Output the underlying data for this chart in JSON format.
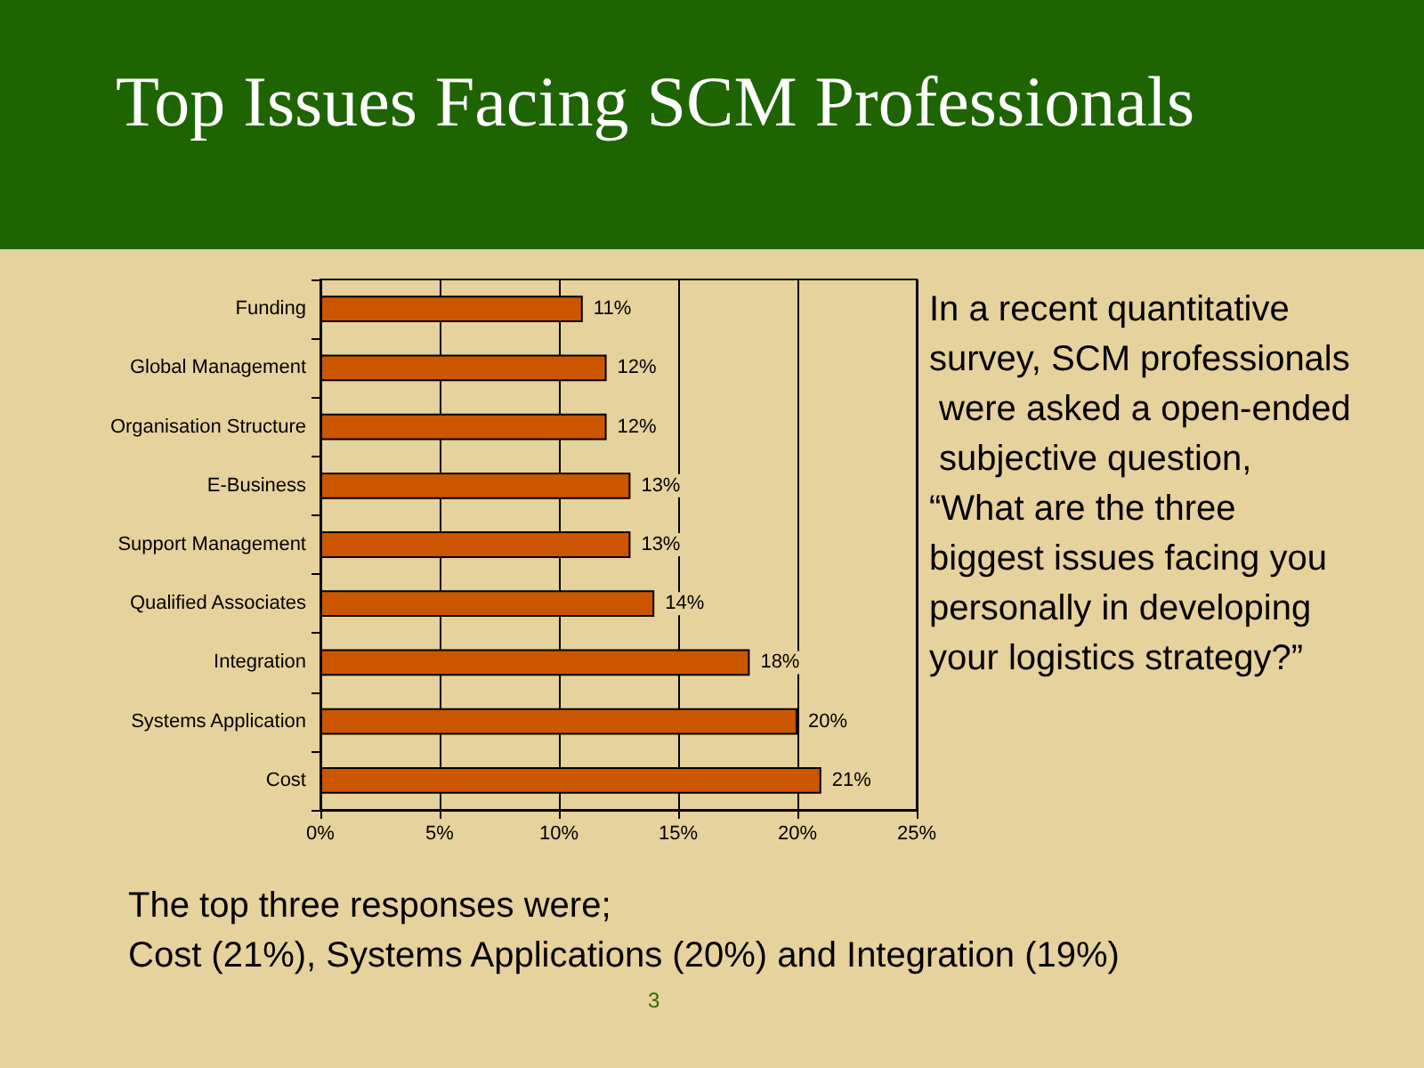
{
  "chart_data": {
    "type": "bar",
    "orientation": "horizontal",
    "title": "Top Issues Facing SCM Professionals",
    "categories": [
      "Funding",
      "Global Management",
      "Organisation Structure",
      "E-Business",
      "Support Management",
      "Qualified Associates",
      "Integration",
      "Systems Application",
      "Cost"
    ],
    "values": [
      11,
      12,
      12,
      13,
      13,
      14,
      18,
      20,
      21
    ],
    "value_labels": [
      "11%",
      "12%",
      "12%",
      "13%",
      "13%",
      "14%",
      "18%",
      "20%",
      "21%"
    ],
    "color": "#cc5500",
    "xlim": [
      0,
      25
    ],
    "xticks": [
      {
        "value": 0,
        "label": "0%"
      },
      {
        "value": 5,
        "label": "5%"
      },
      {
        "value": 10,
        "label": "10%"
      },
      {
        "value": 15,
        "label": "15%"
      },
      {
        "value": 20,
        "label": "20%"
      },
      {
        "value": 25,
        "label": "25%"
      }
    ],
    "grid": "x",
    "annotations": [
      "In a recent quantitative survey, SCM professionals were asked a open-ended subjective question, “What are the three biggest issues facing you personally in developing your logistics strategy?”",
      "The top three responses were;\nCost (21%), Systems Applications (20%) and Integration (19%)",
      "3"
    ]
  }
}
